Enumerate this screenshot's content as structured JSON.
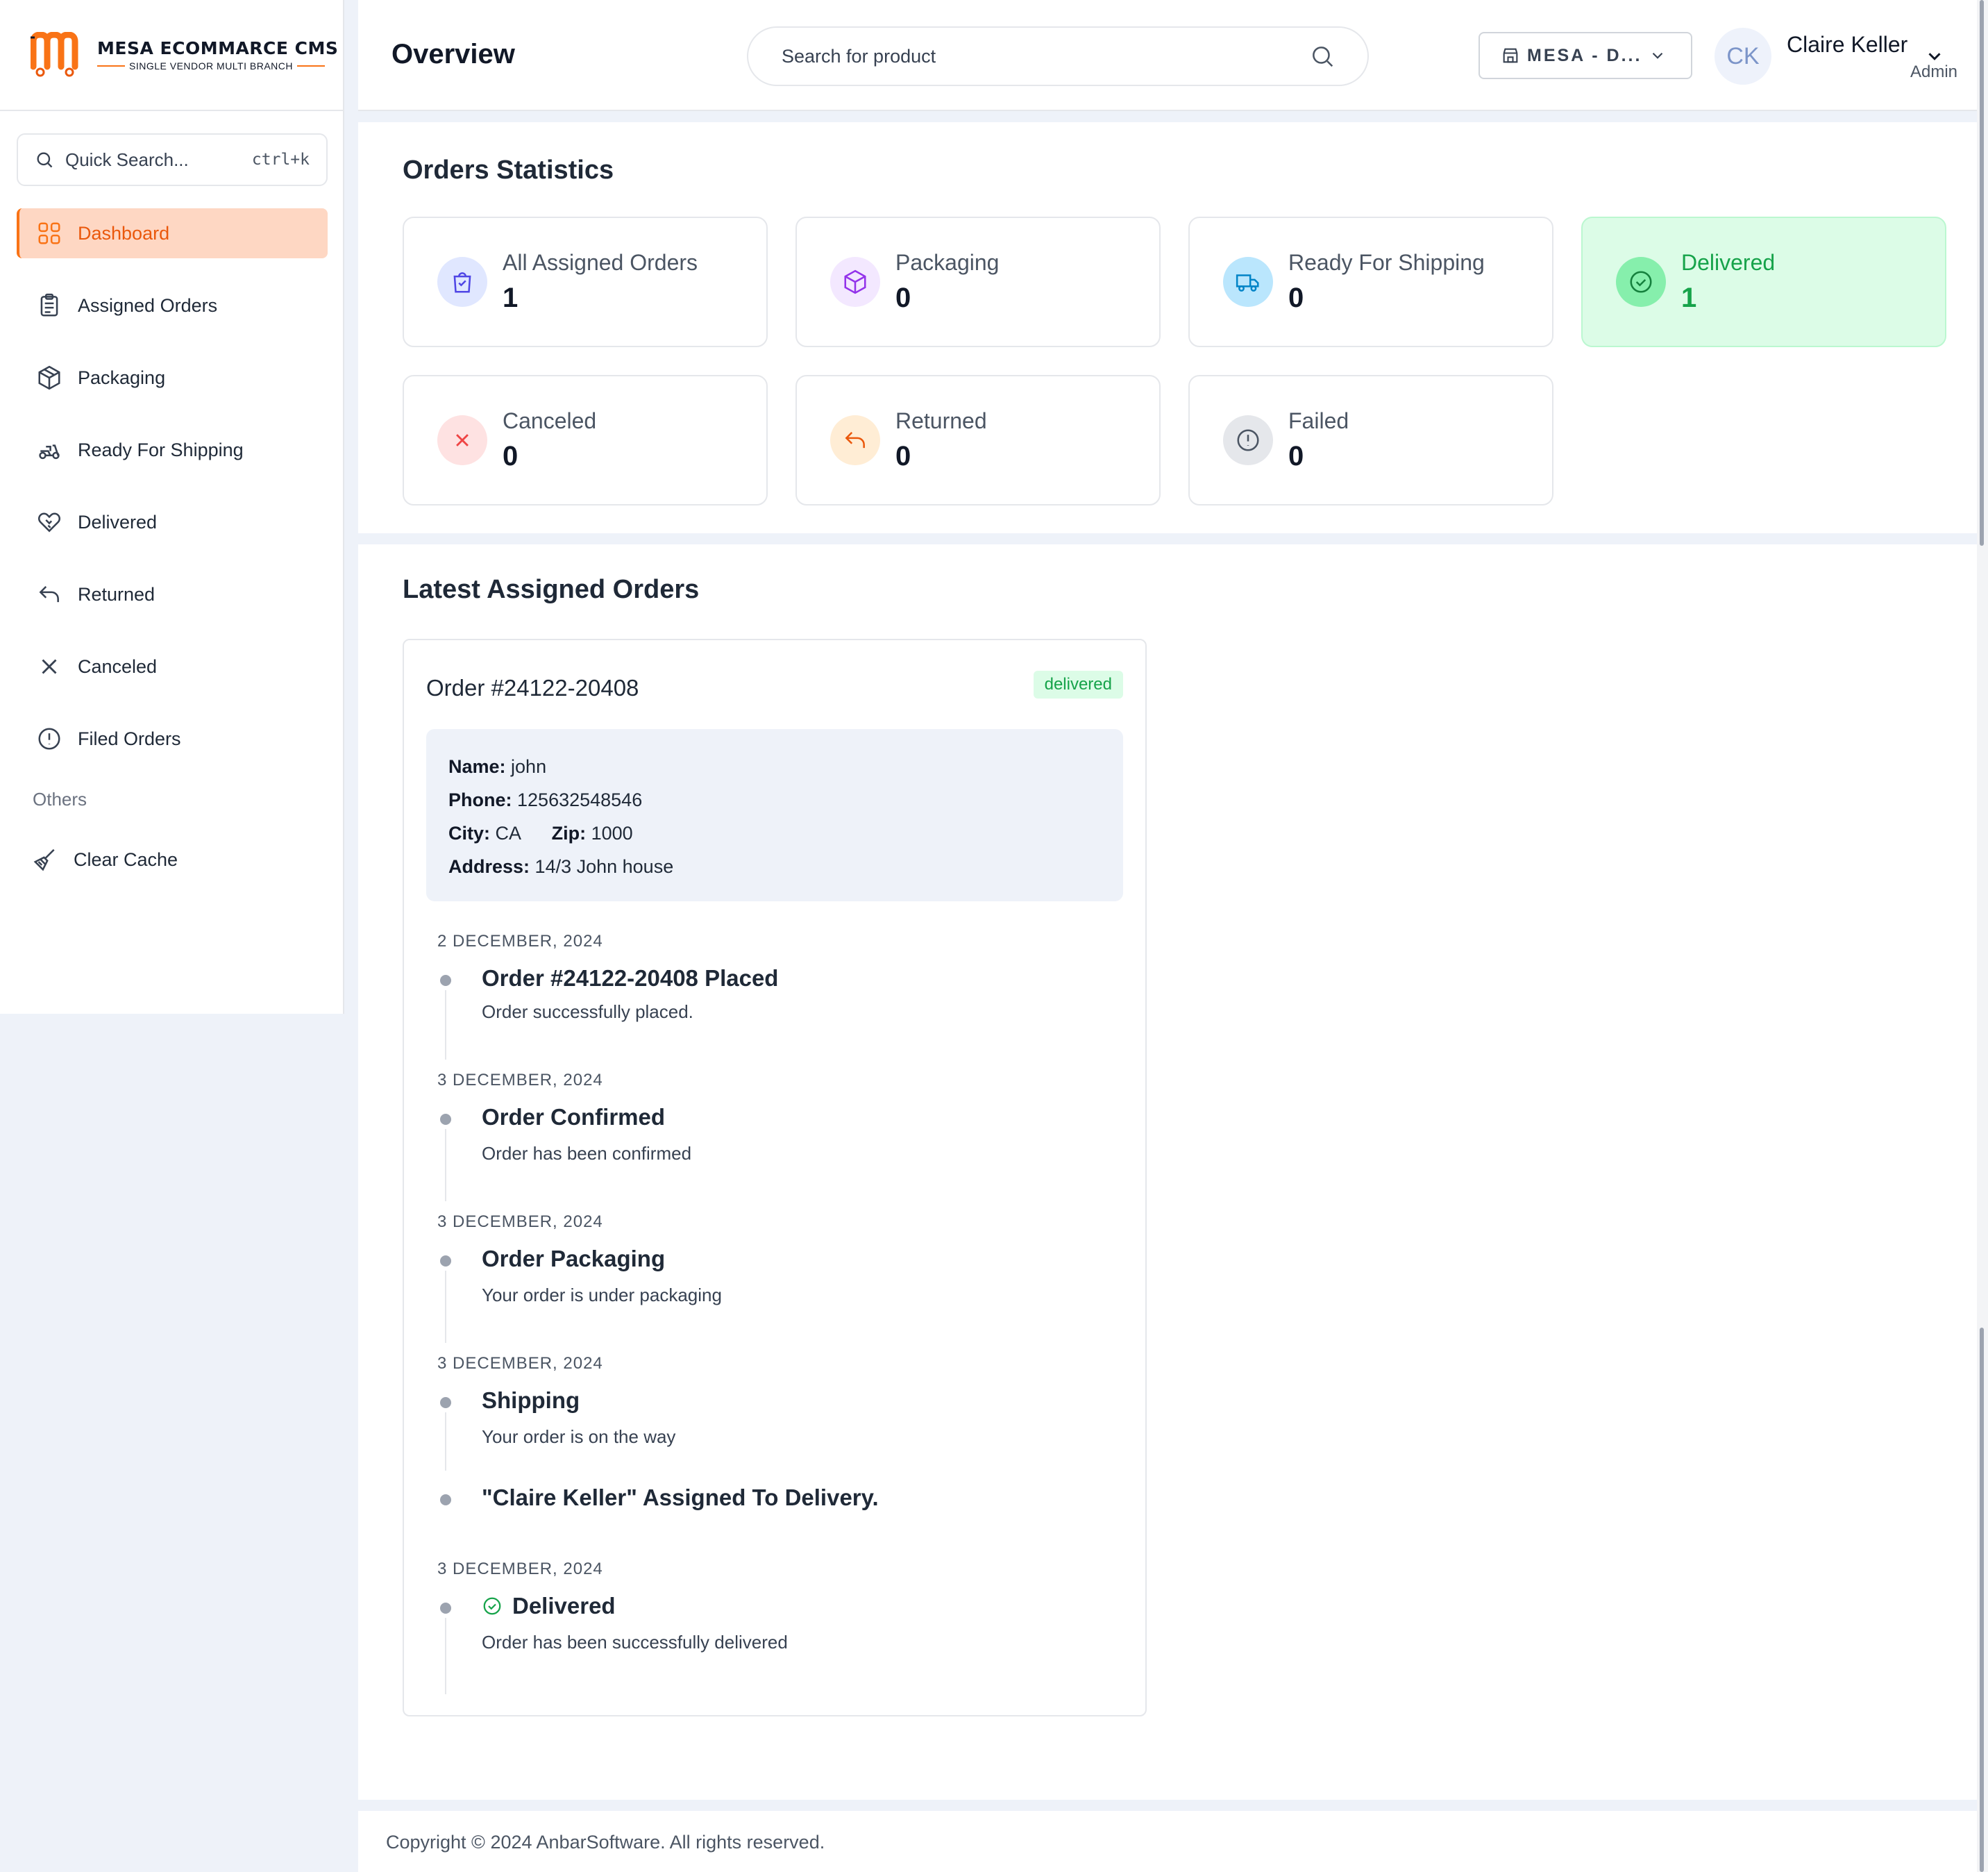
{
  "colors": {
    "accent": "#f97316",
    "delivered": "#16a34a",
    "canceled": "#ef4444",
    "returned": "#ea580c"
  },
  "brand": {
    "name": "MESA ECOMMARCE CMS",
    "tagline": "SINGLE VENDOR MULTI BRANCH"
  },
  "sidebar": {
    "quick_search": {
      "label": "Quick Search...",
      "shortcut": "ctrl+k",
      "icon": "search-icon"
    },
    "items": [
      {
        "label": "Dashboard",
        "icon": "dashboard-grid-icon",
        "active": true
      },
      {
        "label": "Assigned Orders",
        "icon": "clipboard-icon"
      },
      {
        "label": "Packaging",
        "icon": "box-icon"
      },
      {
        "label": "Ready For Shipping",
        "icon": "delivery-scooter-icon"
      },
      {
        "label": "Delivered",
        "icon": "handshake-icon"
      },
      {
        "label": "Returned",
        "icon": "return-arrow-icon"
      },
      {
        "label": "Canceled",
        "icon": "x-icon"
      },
      {
        "label": "Filed Orders",
        "icon": "alert-circle-icon"
      }
    ],
    "section_others": "Others",
    "others": [
      {
        "label": "Clear Cache",
        "icon": "broom-icon"
      }
    ]
  },
  "header": {
    "title": "Overview",
    "search_placeholder": "Search for product",
    "branch": "MESA - D...",
    "user": {
      "initials": "CK",
      "name": "Claire Keller",
      "role": "Admin"
    }
  },
  "stats": {
    "title": "Orders Statistics",
    "cards": [
      {
        "label": "All Assigned Orders",
        "value": "1",
        "icon": "shopping-bag-check-icon"
      },
      {
        "label": "Packaging",
        "value": "0",
        "icon": "box-icon"
      },
      {
        "label": "Ready For Shipping",
        "value": "0",
        "icon": "truck-icon"
      },
      {
        "label": "Delivered",
        "value": "1",
        "icon": "check-circle-icon"
      },
      {
        "label": "Canceled",
        "value": "0",
        "icon": "x-icon"
      },
      {
        "label": "Returned",
        "value": "0",
        "icon": "return-arrow-icon"
      },
      {
        "label": "Failed",
        "value": "0",
        "icon": "alert-circle-icon"
      }
    ]
  },
  "orders": {
    "title": "Latest Assigned Orders",
    "order": {
      "id": "Order #24122-20408",
      "status": "delivered",
      "customer": {
        "name_label": "Name:",
        "name": "john",
        "phone_label": "Phone:",
        "phone": "125632548546",
        "city_label": "City:",
        "city": "CA",
        "zip_label": "Zip:",
        "zip": "1000",
        "address_label": "Address:",
        "address": "14/3 John house"
      },
      "timeline": [
        {
          "date": "2 DECEMBER, 2024",
          "title": "Order #24122-20408 Placed",
          "desc": "Order successfully placed."
        },
        {
          "date": "3 DECEMBER, 2024",
          "title": "Order Confirmed",
          "desc": "Order has been confirmed"
        },
        {
          "date": "3 DECEMBER, 2024",
          "title": "Order Packaging",
          "desc": "Your order is under packaging"
        },
        {
          "date": "3 DECEMBER, 2024",
          "title": "Shipping",
          "desc": "Your order is on the way"
        },
        {
          "date": "",
          "title": "\"Claire Keller\" Assigned To Delivery.",
          "desc": ""
        },
        {
          "date": "3 DECEMBER, 2024",
          "title": "Delivered",
          "desc": "Order has been successfully delivered",
          "icon": "check-circle-icon"
        }
      ]
    }
  },
  "footer": {
    "text": "Copyright © 2024 AnbarSoftware. All rights reserved."
  }
}
